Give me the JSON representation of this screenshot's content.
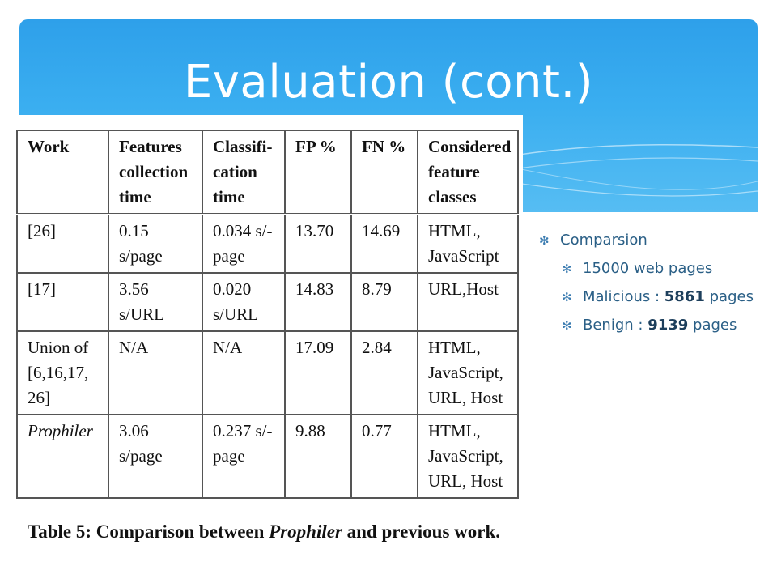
{
  "slide": {
    "title": "Evaluation (cont.)"
  },
  "table": {
    "headers": [
      [
        "Work"
      ],
      [
        "Features",
        "collection",
        "time"
      ],
      [
        "Classifi-",
        "cation",
        "time"
      ],
      [
        "FP %"
      ],
      [
        "FN %"
      ],
      [
        "Considered",
        "feature",
        "classes"
      ]
    ],
    "rows": [
      {
        "work": [
          "[26]"
        ],
        "features": [
          "0.15",
          "s/page"
        ],
        "classification": [
          "0.034 s/-",
          "page"
        ],
        "fp": "13.70",
        "fn": "14.69",
        "classes": [
          "HTML,",
          "JavaScript"
        ]
      },
      {
        "work": [
          "[17]"
        ],
        "features": [
          "3.56",
          "s/URL"
        ],
        "classification": [
          "0.020",
          "s/URL"
        ],
        "fp": "14.83",
        "fn": "8.79",
        "classes": [
          "URL,Host"
        ]
      },
      {
        "work": [
          "Union of",
          "[6,16,17,",
          "26]"
        ],
        "features": [
          "N/A"
        ],
        "classification": [
          "N/A"
        ],
        "fp": "17.09",
        "fn": "2.84",
        "classes": [
          "HTML,",
          "JavaScript,",
          "URL, Host"
        ]
      },
      {
        "work": [
          "Prophiler"
        ],
        "features": [
          "3.06",
          "s/page"
        ],
        "classification": [
          "0.237 s/-",
          "page"
        ],
        "fp": "9.88",
        "fn": "0.77",
        "classes": [
          "HTML,",
          "JavaScript,",
          "URL, Host"
        ]
      }
    ],
    "caption_prefix": "Table 5: Comparison between ",
    "caption_emph": "Prophiler",
    "caption_suffix": " and previous work."
  },
  "bullets": {
    "top": "Comparsion",
    "sub": [
      {
        "label": "15000 web pages"
      },
      {
        "label": "Malicious : ",
        "count": "5861",
        "suffix": " pages"
      },
      {
        "label": "Benign : ",
        "count": "9139",
        "suffix": " pages"
      }
    ]
  },
  "icons": {
    "bullet": "star-bullet-icon"
  },
  "colors": {
    "header": "#3aaef0",
    "bullet_text": "#2a5f86"
  }
}
